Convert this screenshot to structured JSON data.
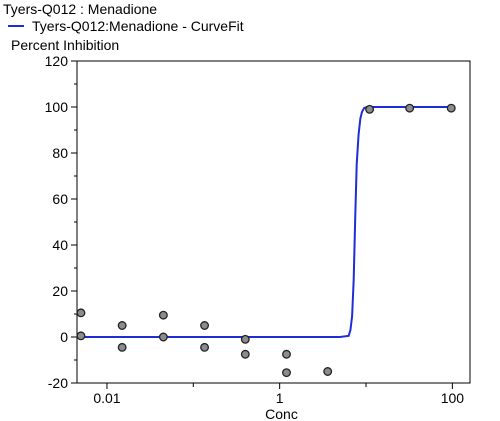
{
  "chart_data": {
    "type": "scatter",
    "title": "Tyers-Q012  :  Menadione",
    "ylabel": "Percent Inhibition",
    "xlabel": "Conc",
    "xscale": "log",
    "xlim": [
      0.0045,
      160
    ],
    "ylim": [
      -20,
      120
    ],
    "yticks": [
      -20,
      0,
      20,
      40,
      60,
      80,
      100,
      120
    ],
    "xticks": [
      0.01,
      1,
      100
    ],
    "xtick_labels": [
      "0.01",
      "1",
      "100"
    ],
    "colors": {
      "fit": "#1f2dd8",
      "points": "#8c8c8c"
    },
    "series": [
      {
        "name": "Tyers-Q012:Menadione - CurveFit",
        "kind": "line",
        "x": [
          0.0045,
          0.1,
          1,
          5,
          6.3,
          6.6,
          6.9,
          7.2,
          7.5,
          7.8,
          8.2,
          8.6,
          9.0,
          9.5,
          10.2,
          11,
          12,
          14,
          100
        ],
        "y": [
          0,
          0,
          0,
          0,
          0.5,
          3,
          9,
          25,
          52,
          75,
          88,
          95,
          98,
          99.5,
          100,
          100,
          100,
          100,
          100
        ]
      },
      {
        "kind": "scatter",
        "points": [
          [
            0.005,
            10.5
          ],
          [
            0.005,
            0.5
          ],
          [
            0.015,
            5
          ],
          [
            0.015,
            -4.5
          ],
          [
            0.045,
            9.5
          ],
          [
            0.045,
            0
          ],
          [
            0.135,
            5
          ],
          [
            0.135,
            -4.5
          ],
          [
            0.4,
            -1
          ],
          [
            0.4,
            -7.5
          ],
          [
            1.2,
            -7.5
          ],
          [
            1.2,
            -15.5
          ],
          [
            3.6,
            -15
          ],
          [
            11,
            99
          ],
          [
            32,
            99.5
          ],
          [
            97,
            99.5
          ]
        ]
      }
    ]
  }
}
